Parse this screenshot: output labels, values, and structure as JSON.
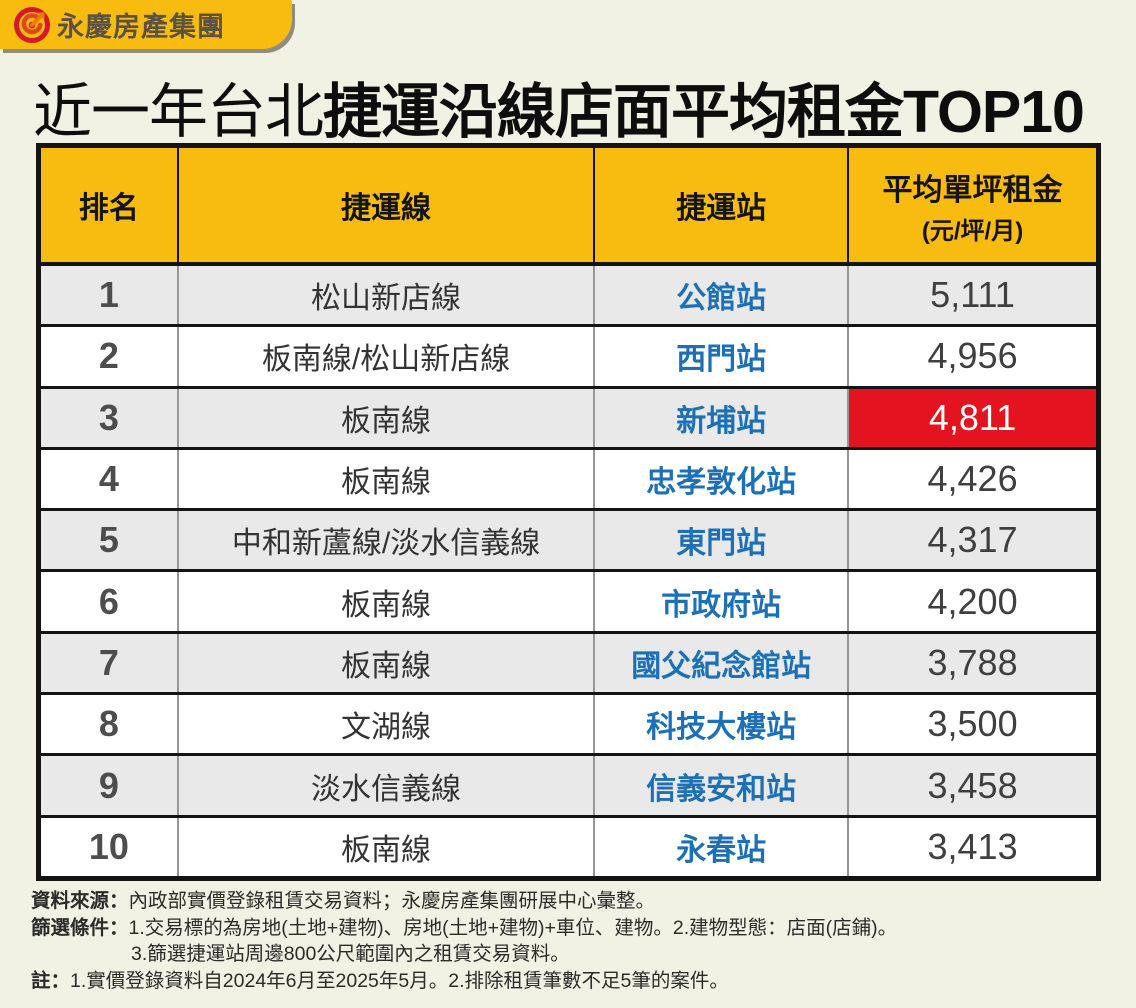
{
  "brand": {
    "logo_text": "永慶房產集團"
  },
  "title": {
    "regular": "近一年台北",
    "bold": "捷運沿線店面平均租金TOP10"
  },
  "table": {
    "headers": [
      {
        "label": "排名"
      },
      {
        "label": "捷運線"
      },
      {
        "label": "捷運站"
      },
      {
        "label": "平均單坪租金",
        "sublabel": "(元/坪/月)"
      }
    ],
    "rows": [
      {
        "rank": "1",
        "line": "松山新店線",
        "station": "公館站",
        "rent": "5,111",
        "highlight": false
      },
      {
        "rank": "2",
        "line": "板南線/松山新店線",
        "station": "西門站",
        "rent": "4,956",
        "highlight": false
      },
      {
        "rank": "3",
        "line": "板南線",
        "station": "新埔站",
        "rent": "4,811",
        "highlight": true
      },
      {
        "rank": "4",
        "line": "板南線",
        "station": "忠孝敦化站",
        "rent": "4,426",
        "highlight": false
      },
      {
        "rank": "5",
        "line": "中和新蘆線/淡水信義線",
        "station": "東門站",
        "rent": "4,317",
        "highlight": false
      },
      {
        "rank": "6",
        "line": "板南線",
        "station": "市政府站",
        "rent": "4,200",
        "highlight": false
      },
      {
        "rank": "7",
        "line": "板南線",
        "station": "國父紀念館站",
        "rent": "3,788",
        "highlight": false
      },
      {
        "rank": "8",
        "line": "文湖線",
        "station": "科技大樓站",
        "rent": "3,500",
        "highlight": false
      },
      {
        "rank": "9",
        "line": "淡水信義線",
        "station": "信義安和站",
        "rent": "3,458",
        "highlight": false
      },
      {
        "rank": "10",
        "line": "板南線",
        "station": "永春站",
        "rent": "3,413",
        "highlight": false
      }
    ]
  },
  "chart_data": {
    "type": "table",
    "title": "近一年台北捷運沿線店面平均租金TOP10",
    "columns": [
      "排名",
      "捷運線",
      "捷運站",
      "平均單坪租金(元/坪/月)"
    ],
    "categories": [
      "公館站",
      "西門站",
      "新埔站",
      "忠孝敦化站",
      "東門站",
      "市政府站",
      "國父紀念館站",
      "科技大樓站",
      "信義安和站",
      "永春站"
    ],
    "lines": [
      "松山新店線",
      "板南線/松山新店線",
      "板南線",
      "板南線",
      "中和新蘆線/淡水信義線",
      "板南線",
      "板南線",
      "文湖線",
      "淡水信義線",
      "板南線"
    ],
    "values": [
      5111,
      4956,
      4811,
      4426,
      4317,
      4200,
      3788,
      3500,
      3458,
      3413
    ],
    "highlighted_row": 3
  },
  "footnotes": {
    "source_label": "資料來源：",
    "source_text": "內政部實價登錄租賃交易資料；永慶房產集團研展中心彙整。",
    "filter_label": "篩選條件：",
    "filter_text_1": "1.交易標的為房地(土地+建物)、房地(土地+建物)+車位、建物。2.建物型態：店面(店鋪)。",
    "filter_text_2": "3.篩選捷運站周邊800公尺範圍內之租賃交易資料。",
    "note_label": "註：",
    "note_text": "1.實價登錄資料自2024年6月至2025年5月。2.排除租賃筆數不足5筆的案件。"
  },
  "colors": {
    "background": "#F1F2E3",
    "header_yellow": "#F8BB10",
    "highlight_red": "#E31420",
    "station_blue": "#1C70B8",
    "logo_red": "#D7182A",
    "logo_orange": "#EE7A00",
    "border_black": "#141414"
  }
}
